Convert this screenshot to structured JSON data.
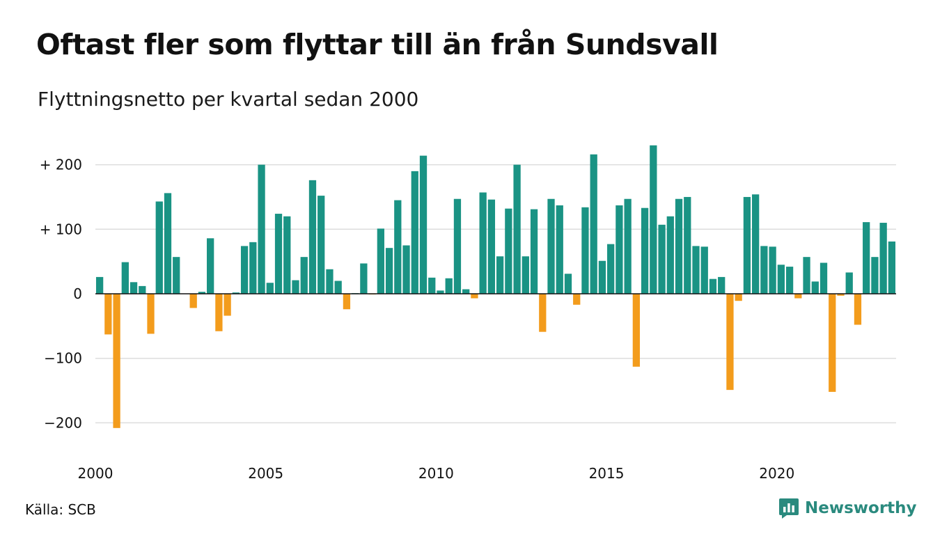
{
  "title": "Oftast fler som flyttar till än från Sundsvall",
  "subtitle": "Flyttningsnetto per kvartal sedan 2000",
  "source": "Källa: SCB",
  "brand": {
    "name": "Newsworthy",
    "icon": "newsworthy-logo-icon",
    "color": "#2a8a7e"
  },
  "colors": {
    "positive": "#1a9384",
    "negative": "#f39c1c",
    "grid": "#dddddd",
    "zero": "#111111"
  },
  "chart_data": {
    "type": "bar",
    "x_start_year": 2000,
    "x_tick_labels": [
      "2000",
      "2005",
      "2010",
      "2015",
      "2020"
    ],
    "y_tick_labels": [
      {
        "value": 200,
        "label": "+ 200"
      },
      {
        "value": 100,
        "label": "+ 100"
      },
      {
        "value": 0,
        "label": "0"
      },
      {
        "value": -100,
        "label": "−100"
      },
      {
        "value": -200,
        "label": "−200"
      }
    ],
    "ylim": [
      -230,
      235
    ],
    "grid": true,
    "values": [
      26,
      -63,
      -208,
      49,
      18,
      12,
      -62,
      143,
      156,
      57,
      0,
      -22,
      3,
      86,
      -58,
      -34,
      2,
      74,
      80,
      200,
      17,
      124,
      120,
      21,
      57,
      176,
      152,
      38,
      20,
      -24,
      1,
      47,
      -1,
      101,
      71,
      145,
      75,
      190,
      214,
      25,
      5,
      24,
      147,
      7,
      -7,
      157,
      146,
      58,
      132,
      200,
      58,
      131,
      -59,
      147,
      137,
      31,
      -17,
      134,
      216,
      51,
      77,
      137,
      147,
      -113,
      133,
      230,
      107,
      120,
      147,
      150,
      74,
      73,
      23,
      26,
      -149,
      -11,
      150,
      154,
      74,
      73,
      45,
      42,
      -7,
      57,
      19,
      48,
      -152,
      -3,
      33,
      -48,
      111,
      57,
      110,
      81
    ]
  }
}
